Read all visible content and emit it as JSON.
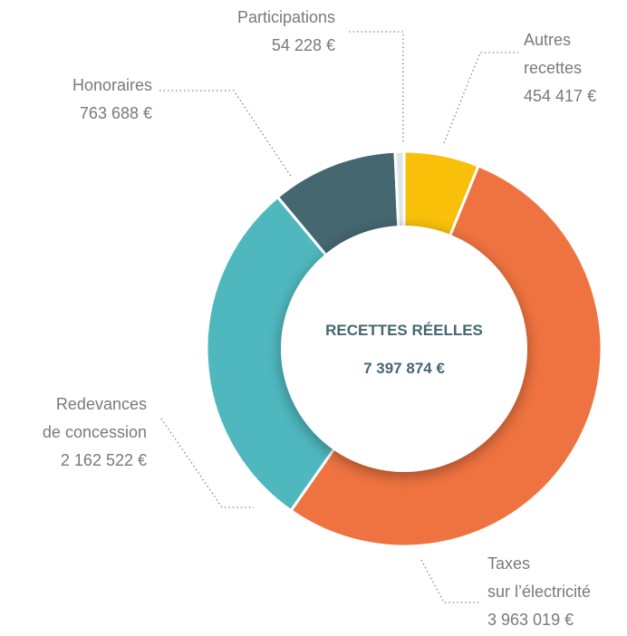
{
  "chart_data": {
    "type": "donut",
    "center_title": "RECETTES RÉELLES",
    "center_value": "7 397 874 €",
    "categories": [
      [
        "Autres",
        "recettes"
      ],
      [
        "Taxes",
        "sur l’électricité"
      ],
      [
        "Redevances",
        "de concession"
      ],
      [
        "Honoraires"
      ],
      [
        "Participations"
      ]
    ],
    "values": [
      454417,
      3963019,
      2162522,
      763688,
      54228
    ],
    "value_labels": [
      "454 417 €",
      "3 963 019 €",
      "2 162 522 €",
      "763 688 €",
      "54 228 €"
    ],
    "colors": [
      "#f9c00a",
      "#ef7340",
      "#4fb8bf",
      "#456770",
      "#dfe4e6"
    ]
  }
}
